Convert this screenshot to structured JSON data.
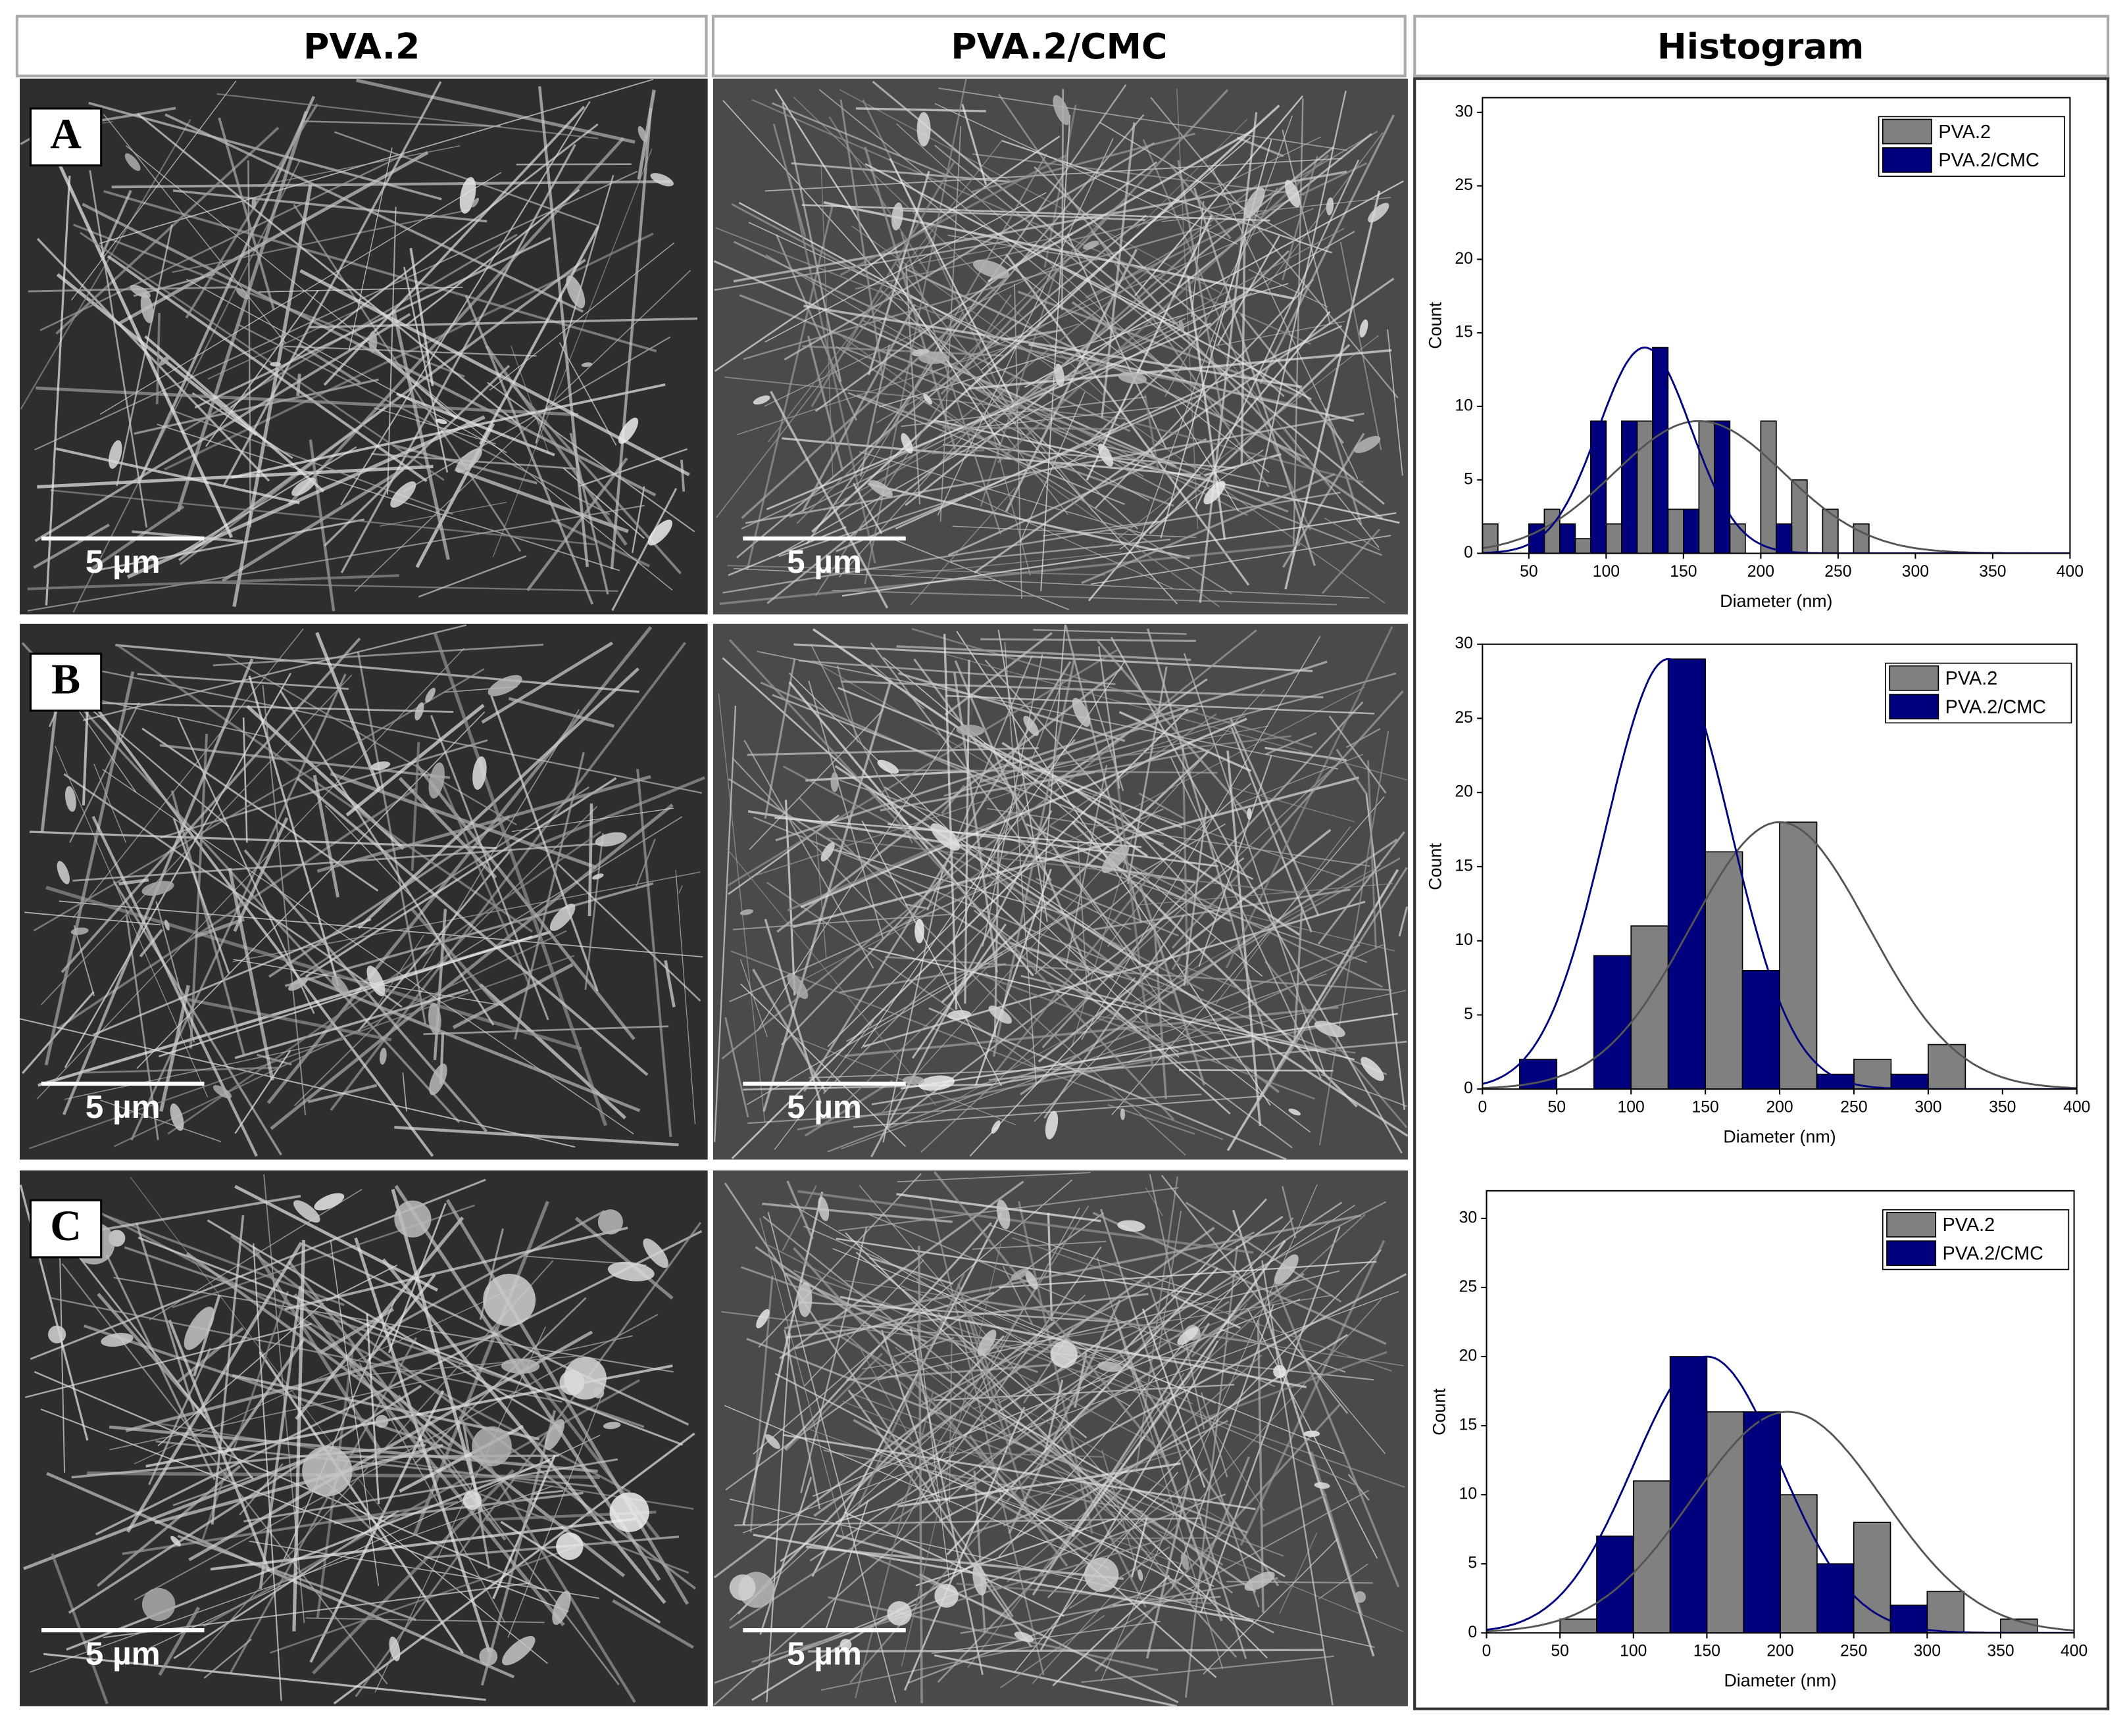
{
  "headers": [
    "PVA.2",
    "PVA.2/CMC",
    "Histogram"
  ],
  "panels": [
    {
      "letter": "A",
      "scale_bars": [
        "5 µm",
        "5 µm"
      ]
    },
    {
      "letter": "B",
      "scale_bars": [
        "5 µm",
        "5 µm"
      ]
    },
    {
      "letter": "C",
      "scale_bars": [
        "5 µm",
        "5 µm"
      ]
    }
  ],
  "chart_data": [
    {
      "type": "histogram",
      "x_label": "Diameter (nm)",
      "y_label": "Count",
      "xlim": [
        20,
        400
      ],
      "xticks": [
        50,
        100,
        150,
        200,
        250,
        300,
        350,
        400
      ],
      "ylim": [
        0,
        31
      ],
      "yticks": [
        0,
        5,
        10,
        15,
        20,
        25,
        30
      ],
      "legend": "upper right",
      "series": [
        {
          "name": "PVA.2",
          "color": "#808080",
          "line_color": "#555555",
          "bins": [
            [
              20,
              30
            ],
            [
              60,
              70
            ],
            [
              80,
              90
            ],
            [
              100,
              110
            ],
            [
              120,
              130
            ],
            [
              140,
              150
            ],
            [
              160,
              170
            ],
            [
              180,
              190
            ],
            [
              200,
              210
            ],
            [
              220,
              230
            ],
            [
              240,
              250
            ],
            [
              260,
              270
            ]
          ],
          "values": [
            2,
            3,
            1,
            2,
            9,
            3,
            9,
            2,
            9,
            5,
            3,
            2
          ],
          "fit": {
            "mean": 160,
            "sd": 55,
            "peak": 9
          }
        },
        {
          "name": "PVA.2/CMC",
          "color": "#00007f",
          "line_color": "#00007f",
          "bins": [
            [
              50,
              60
            ],
            [
              70,
              80
            ],
            [
              90,
              100
            ],
            [
              110,
              120
            ],
            [
              130,
              140
            ],
            [
              150,
              160
            ],
            [
              170,
              180
            ],
            [
              210,
              220
            ]
          ],
          "values": [
            2,
            2,
            9,
            9,
            14,
            3,
            9,
            2
          ],
          "fit": {
            "mean": 125,
            "sd": 30,
            "peak": 14
          }
        }
      ]
    },
    {
      "type": "histogram",
      "x_label": "Diameter (nm)",
      "y_label": "Count",
      "xlim": [
        0,
        400
      ],
      "xticks": [
        0,
        50,
        100,
        150,
        200,
        250,
        300,
        350,
        400
      ],
      "ylim": [
        0,
        30
      ],
      "yticks": [
        0,
        5,
        10,
        15,
        20,
        25,
        30
      ],
      "legend": "upper right",
      "series": [
        {
          "name": "PVA.2",
          "color": "#808080",
          "line_color": "#555555",
          "bins": [
            [
              100,
              125
            ],
            [
              150,
              175
            ],
            [
              200,
              225
            ],
            [
              250,
              275
            ],
            [
              300,
              325
            ]
          ],
          "values": [
            11,
            16,
            18,
            2,
            3
          ],
          "fit": {
            "mean": 200,
            "sd": 60,
            "peak": 18
          }
        },
        {
          "name": "PVA.2/CMC",
          "color": "#00007f",
          "line_color": "#00007f",
          "bins": [
            [
              25,
              50
            ],
            [
              75,
              100
            ],
            [
              125,
              150
            ],
            [
              175,
              200
            ],
            [
              225,
              250
            ],
            [
              275,
              300
            ]
          ],
          "values": [
            2,
            9,
            29,
            8,
            1,
            1
          ],
          "fit": {
            "mean": 125,
            "sd": 42,
            "peak": 29
          }
        }
      ]
    },
    {
      "type": "histogram",
      "x_label": "Diameter (nm)",
      "y_label": "Count",
      "xlim": [
        0,
        400
      ],
      "xticks": [
        0,
        50,
        100,
        150,
        200,
        250,
        300,
        350,
        400
      ],
      "ylim": [
        0,
        32
      ],
      "yticks": [
        0,
        5,
        10,
        15,
        20,
        25,
        30
      ],
      "legend": "upper right",
      "series": [
        {
          "name": "PVA.2",
          "color": "#808080",
          "line_color": "#555555",
          "bins": [
            [
              50,
              75
            ],
            [
              100,
              125
            ],
            [
              150,
              175
            ],
            [
              200,
              225
            ],
            [
              250,
              275
            ],
            [
              300,
              325
            ],
            [
              350,
              375
            ]
          ],
          "values": [
            1,
            11,
            16,
            10,
            8,
            3,
            1
          ],
          "fit": {
            "mean": 205,
            "sd": 65,
            "peak": 16
          }
        },
        {
          "name": "PVA.2/CMC",
          "color": "#00007f",
          "line_color": "#00007f",
          "bins": [
            [
              75,
              100
            ],
            [
              125,
              150
            ],
            [
              175,
              200
            ],
            [
              225,
              250
            ],
            [
              275,
              300
            ]
          ],
          "values": [
            7,
            20,
            16,
            5,
            2
          ],
          "fit": {
            "mean": 150,
            "sd": 50,
            "peak": 20
          }
        }
      ]
    }
  ]
}
